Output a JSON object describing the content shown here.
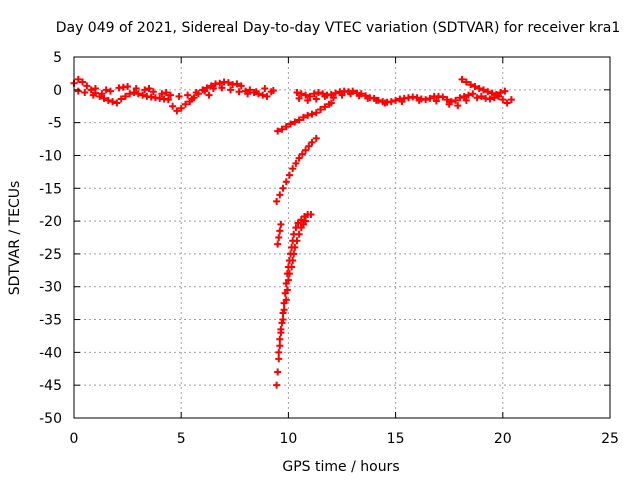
{
  "chart_data": {
    "type": "scatter",
    "title": "Day 049 of 2021, Sidereal Day-to-day VTEC variation (SDTVAR) for receiver kra1",
    "xlabel": "GPS time / hours",
    "ylabel": "SDTVAR / TECUs",
    "xlim": [
      0,
      25
    ],
    "ylim": [
      -50,
      5
    ],
    "xticks": [
      0,
      5,
      10,
      15,
      20,
      25
    ],
    "yticks": [
      5,
      0,
      -5,
      -10,
      -15,
      -20,
      -25,
      -30,
      -35,
      -40,
      -45,
      -50
    ],
    "grid": true,
    "marker": "plus",
    "color": "#ff0000",
    "series": [
      {
        "points": [
          [
            0.0,
            1.0
          ],
          [
            0.2,
            1.6
          ],
          [
            0.4,
            1.2
          ],
          [
            0.6,
            0.6
          ],
          [
            0.8,
            0.0
          ],
          [
            1.0,
            -0.5
          ],
          [
            1.2,
            -1.0
          ],
          [
            1.4,
            -1.3
          ],
          [
            1.6,
            -1.6
          ],
          [
            1.8,
            -1.8
          ],
          [
            2.0,
            -2.0
          ],
          [
            2.2,
            -1.4
          ],
          [
            2.4,
            -1.0
          ],
          [
            2.6,
            -0.6
          ],
          [
            2.8,
            -0.4
          ],
          [
            3.0,
            -0.6
          ],
          [
            3.2,
            -0.8
          ],
          [
            3.4,
            -1.0
          ],
          [
            3.6,
            -1.1
          ],
          [
            3.8,
            -1.2
          ],
          [
            4.0,
            -1.3
          ],
          [
            4.2,
            -1.4
          ],
          [
            4.4,
            -1.5
          ],
          [
            4.6,
            -2.5
          ],
          [
            4.8,
            -3.2
          ],
          [
            5.0,
            -2.8
          ],
          [
            5.2,
            -2.2
          ],
          [
            5.4,
            -1.8
          ],
          [
            5.6,
            -1.2
          ],
          [
            5.8,
            -0.6
          ],
          [
            6.0,
            0.0
          ],
          [
            6.2,
            0.3
          ],
          [
            6.4,
            0.6
          ],
          [
            6.6,
            0.9
          ],
          [
            6.8,
            1.0
          ],
          [
            7.0,
            1.2
          ],
          [
            7.2,
            1.1
          ],
          [
            7.4,
            0.8
          ],
          [
            7.6,
            0.9
          ],
          [
            7.8,
            0.6
          ],
          [
            8.0,
            -0.2
          ],
          [
            8.2,
            0.0
          ],
          [
            8.4,
            -0.4
          ],
          [
            8.6,
            -0.6
          ],
          [
            8.8,
            -0.8
          ],
          [
            9.0,
            -1.0
          ],
          [
            9.2,
            -0.3
          ],
          [
            0.2,
            -0.2
          ],
          [
            0.5,
            -0.4
          ],
          [
            0.9,
            -0.8
          ],
          [
            1.3,
            -0.6
          ],
          [
            1.7,
            -0.2
          ],
          [
            2.1,
            0.3
          ],
          [
            2.5,
            0.5
          ],
          [
            2.9,
            0.2
          ],
          [
            3.3,
            0.0
          ],
          [
            3.7,
            -0.3
          ],
          [
            4.1,
            -0.6
          ],
          [
            4.5,
            -0.8
          ],
          [
            4.9,
            -1.0
          ],
          [
            5.3,
            -0.8
          ],
          [
            5.7,
            -0.4
          ],
          [
            6.1,
            -0.2
          ],
          [
            6.5,
            0.2
          ],
          [
            6.9,
            0.3
          ],
          [
            7.3,
            0.0
          ],
          [
            7.7,
            -0.3
          ],
          [
            8.1,
            -0.6
          ],
          [
            8.5,
            -0.3
          ],
          [
            8.9,
            0.2
          ],
          [
            9.3,
            -0.1
          ],
          [
            1.0,
            0.2
          ],
          [
            1.5,
            0.0
          ],
          [
            2.3,
            0.4
          ],
          [
            3.5,
            0.2
          ],
          [
            4.3,
            -0.4
          ],
          [
            5.5,
            -1.4
          ],
          [
            6.3,
            -0.8
          ]
        ]
      },
      {
        "points": [
          [
            10.4,
            -0.4
          ],
          [
            10.6,
            -0.6
          ],
          [
            10.8,
            -0.8
          ],
          [
            11.0,
            -1.0
          ],
          [
            11.2,
            -0.6
          ],
          [
            11.4,
            -0.4
          ],
          [
            11.6,
            -0.6
          ],
          [
            11.8,
            -0.8
          ],
          [
            12.0,
            -0.7
          ],
          [
            12.2,
            -0.5
          ],
          [
            12.4,
            -0.3
          ],
          [
            12.6,
            -0.2
          ],
          [
            12.8,
            -0.3
          ],
          [
            13.0,
            -0.2
          ],
          [
            13.2,
            -0.5
          ],
          [
            13.4,
            -0.6
          ],
          [
            13.6,
            -0.9
          ],
          [
            13.8,
            -1.2
          ],
          [
            14.0,
            -1.3
          ],
          [
            14.2,
            -1.6
          ],
          [
            14.4,
            -1.8
          ],
          [
            14.6,
            -1.9
          ],
          [
            14.8,
            -1.8
          ],
          [
            15.0,
            -1.6
          ],
          [
            15.2,
            -1.4
          ],
          [
            15.4,
            -1.3
          ],
          [
            15.6,
            -1.2
          ],
          [
            15.8,
            -1.1
          ],
          [
            16.0,
            -1.2
          ],
          [
            16.2,
            -1.4
          ],
          [
            16.4,
            -1.5
          ],
          [
            16.6,
            -1.3
          ],
          [
            16.8,
            -1.0
          ],
          [
            17.0,
            -1.0
          ],
          [
            17.2,
            -1.1
          ],
          [
            17.4,
            -1.5
          ],
          [
            17.6,
            -1.8
          ],
          [
            17.8,
            -1.6
          ],
          [
            18.0,
            -1.2
          ],
          [
            18.2,
            -1.0
          ],
          [
            18.4,
            -0.8
          ],
          [
            18.6,
            -0.6
          ],
          [
            18.8,
            -1.2
          ],
          [
            19.0,
            -1.0
          ],
          [
            19.2,
            -1.3
          ],
          [
            19.4,
            -1.4
          ],
          [
            19.6,
            -1.2
          ],
          [
            19.8,
            -1.0
          ],
          [
            20.0,
            -1.5
          ],
          [
            20.2,
            -2.0
          ],
          [
            20.4,
            -1.5
          ],
          [
            10.5,
            -1.3
          ],
          [
            10.9,
            -1.6
          ],
          [
            11.3,
            -1.4
          ],
          [
            11.7,
            -1.0
          ],
          [
            12.1,
            -1.2
          ],
          [
            12.5,
            -0.8
          ],
          [
            12.9,
            -0.6
          ],
          [
            13.3,
            -0.9
          ],
          [
            13.7,
            -1.3
          ],
          [
            14.1,
            -1.6
          ],
          [
            14.5,
            -2.0
          ],
          [
            15.3,
            -1.8
          ],
          [
            16.1,
            -1.6
          ],
          [
            16.9,
            -1.7
          ],
          [
            17.5,
            -2.2
          ],
          [
            17.9,
            -2.4
          ],
          [
            18.3,
            -1.6
          ],
          [
            18.1,
            1.6
          ],
          [
            18.3,
            1.2
          ],
          [
            18.5,
            0.8
          ],
          [
            18.7,
            0.5
          ],
          [
            18.9,
            0.2
          ],
          [
            19.1,
            0.0
          ],
          [
            19.3,
            -0.3
          ],
          [
            19.5,
            -0.5
          ],
          [
            19.7,
            -0.7
          ],
          [
            19.9,
            -0.4
          ],
          [
            20.1,
            -0.2
          ]
        ]
      },
      {
        "points": [
          [
            9.5,
            -6.3
          ],
          [
            9.7,
            -6.0
          ],
          [
            9.9,
            -5.6
          ],
          [
            10.1,
            -5.2
          ],
          [
            10.3,
            -4.9
          ],
          [
            10.5,
            -4.6
          ],
          [
            10.7,
            -4.2
          ],
          [
            10.9,
            -3.9
          ],
          [
            11.1,
            -3.7
          ],
          [
            11.3,
            -3.5
          ],
          [
            11.5,
            -3.0
          ],
          [
            11.7,
            -2.6
          ],
          [
            11.9,
            -2.2
          ],
          [
            12.0,
            -2.0
          ]
        ]
      },
      {
        "points": [
          [
            9.45,
            -17.0
          ],
          [
            9.6,
            -16.0
          ],
          [
            9.75,
            -15.0
          ],
          [
            9.9,
            -14.0
          ],
          [
            10.05,
            -13.0
          ],
          [
            10.2,
            -12.0
          ],
          [
            10.35,
            -11.2
          ],
          [
            10.5,
            -10.4
          ],
          [
            10.65,
            -9.8
          ],
          [
            10.8,
            -9.2
          ],
          [
            10.95,
            -8.6
          ],
          [
            11.1,
            -8.0
          ],
          [
            11.3,
            -7.4
          ]
        ]
      },
      {
        "points": [
          [
            9.5,
            -23.5
          ],
          [
            9.55,
            -22.5
          ],
          [
            9.6,
            -21.5
          ],
          [
            9.65,
            -20.5
          ]
        ]
      },
      {
        "points": [
          [
            9.45,
            -45.0
          ],
          [
            9.5,
            -43.0
          ],
          [
            9.55,
            -41.0
          ],
          [
            9.6,
            -39.0
          ],
          [
            9.65,
            -37.0
          ],
          [
            9.7,
            -35.5
          ],
          [
            9.75,
            -34.0
          ],
          [
            9.8,
            -32.5
          ],
          [
            9.85,
            -31.0
          ],
          [
            9.9,
            -29.5
          ],
          [
            9.95,
            -28.0
          ],
          [
            10.0,
            -27.0
          ],
          [
            10.05,
            -26.0
          ],
          [
            10.1,
            -25.0
          ],
          [
            10.15,
            -24.0
          ],
          [
            10.2,
            -23.0
          ],
          [
            10.25,
            -22.0
          ],
          [
            10.35,
            -21.0
          ],
          [
            10.45,
            -20.3
          ],
          [
            10.6,
            -19.8
          ],
          [
            10.75,
            -19.3
          ],
          [
            10.9,
            -19.0
          ],
          [
            11.05,
            -19.0
          ],
          [
            9.55,
            -40.0
          ],
          [
            9.6,
            -38.0
          ],
          [
            9.65,
            -36.5
          ],
          [
            9.75,
            -35.0
          ],
          [
            9.8,
            -33.5
          ],
          [
            9.9,
            -32.0
          ],
          [
            9.95,
            -30.5
          ],
          [
            10.0,
            -29.0
          ],
          [
            10.05,
            -28.0
          ],
          [
            10.15,
            -27.0
          ],
          [
            10.2,
            -26.0
          ],
          [
            10.25,
            -25.0
          ],
          [
            10.3,
            -24.0
          ],
          [
            10.4,
            -23.0
          ],
          [
            10.5,
            -22.0
          ],
          [
            10.6,
            -21.0
          ],
          [
            10.7,
            -20.5
          ],
          [
            10.8,
            -20.0
          ]
        ]
      }
    ]
  }
}
